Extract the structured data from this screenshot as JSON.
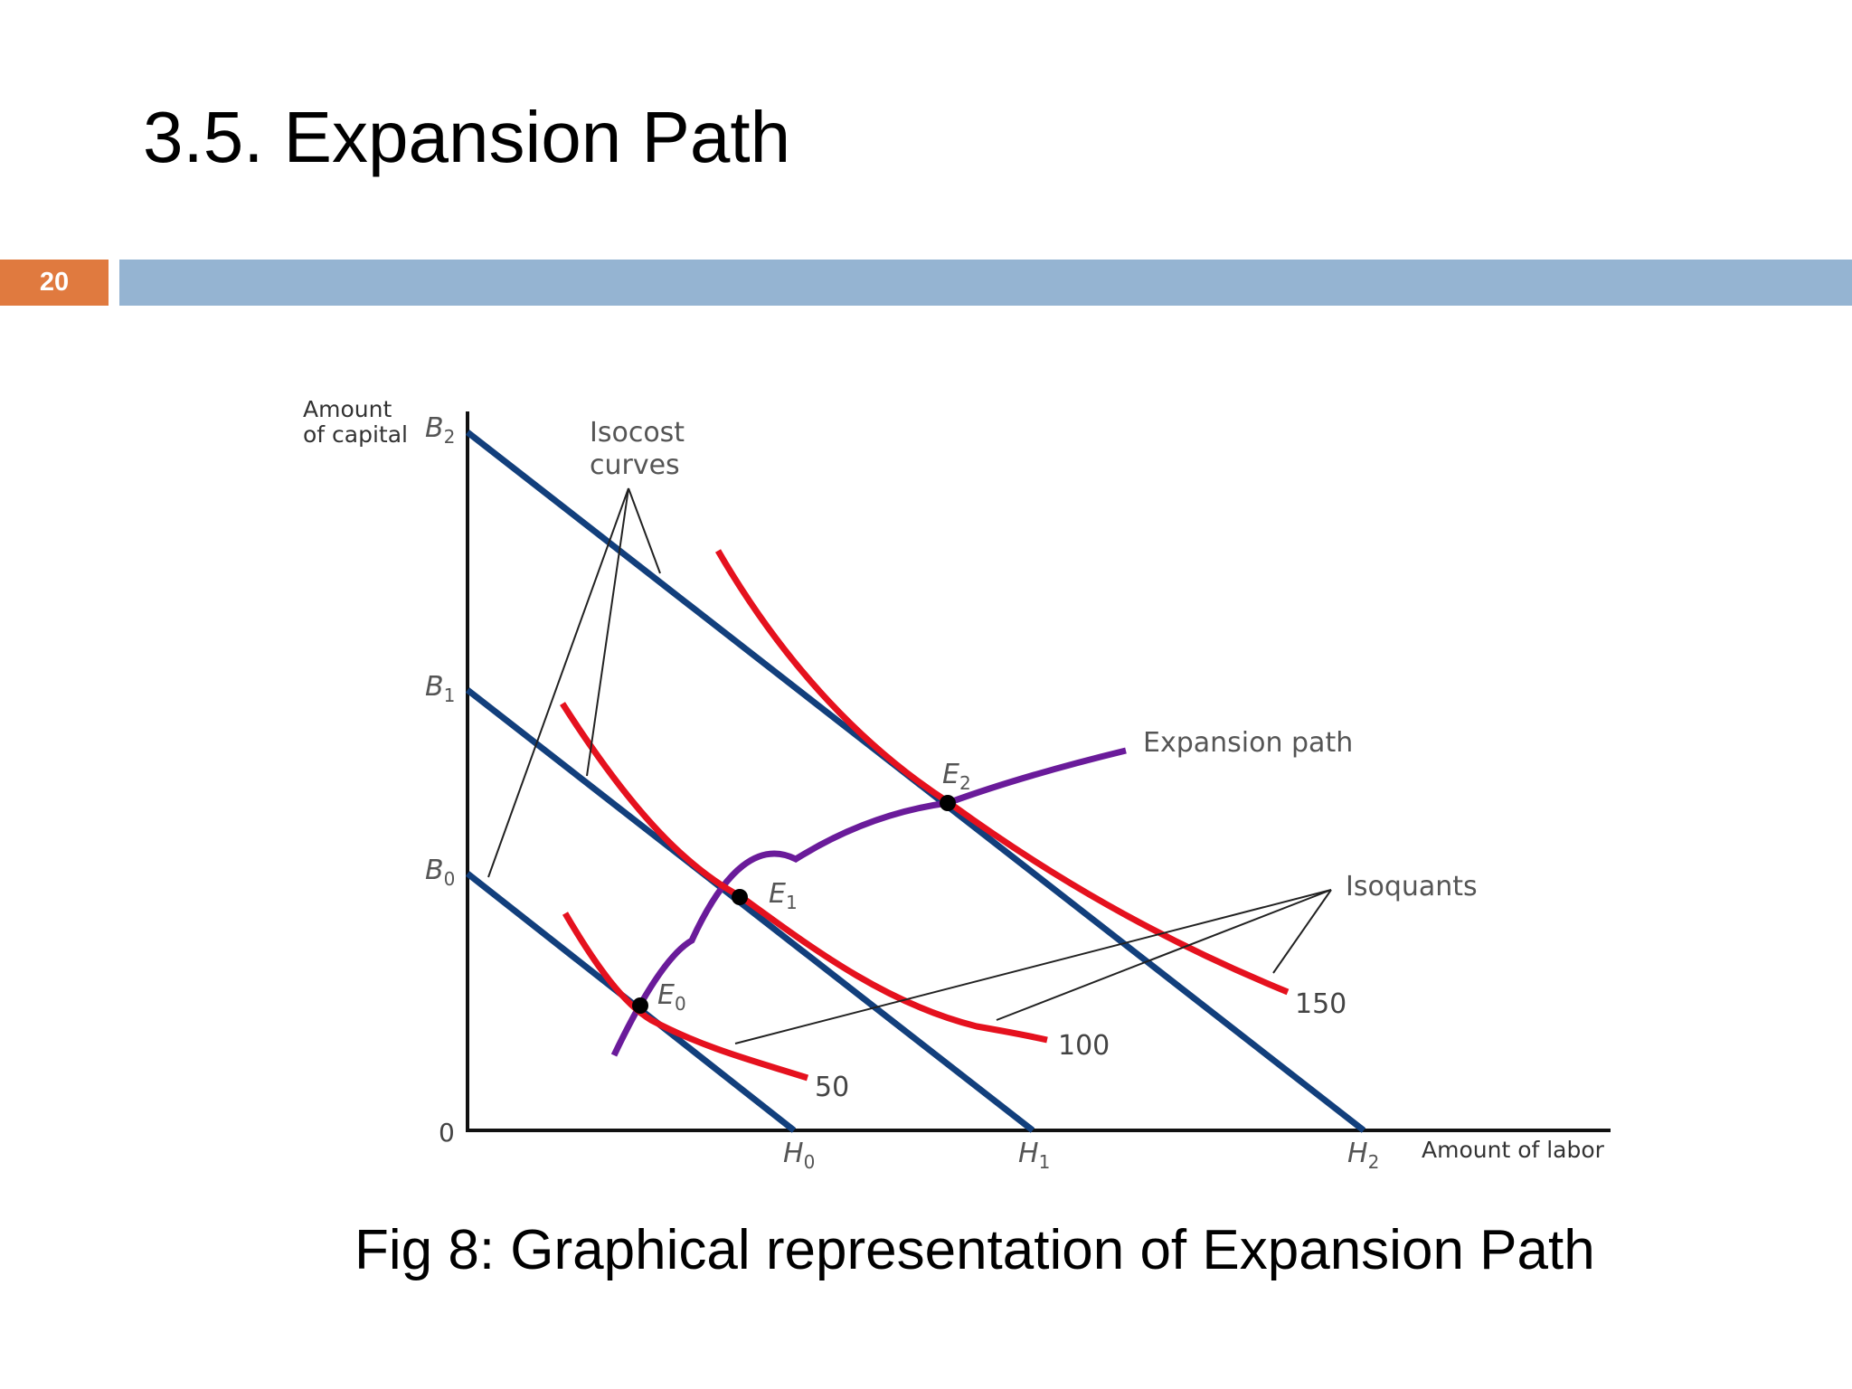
{
  "slide": {
    "title": "3.5. Expansion Path",
    "number": "20",
    "caption": "Fig 8: Graphical representation of Expansion Path"
  },
  "colors": {
    "accent_orange": "#e07a3f",
    "title_bar": "#95b4d2",
    "isocost": "#123f7c",
    "isoquant": "#e5111e",
    "expansion_path": "#6a1b9a"
  },
  "diagram": {
    "y_axis_label_line1": "Amount",
    "y_axis_label_line2": "of capital",
    "x_axis_label": "Amount of labor",
    "origin_label": "0",
    "isocost_label_line1": "Isocost",
    "isocost_label_line2": "curves",
    "isoquants_label": "Isoquants",
    "expansion_path_label": "Expansion path",
    "intercepts": {
      "B": [
        {
          "letter": "B",
          "sub": "0"
        },
        {
          "letter": "B",
          "sub": "1"
        },
        {
          "letter": "B",
          "sub": "2"
        }
      ],
      "H": [
        {
          "letter": "H",
          "sub": "0"
        },
        {
          "letter": "H",
          "sub": "1"
        },
        {
          "letter": "H",
          "sub": "2"
        }
      ]
    },
    "equilibria": [
      {
        "letter": "E",
        "sub": "0"
      },
      {
        "letter": "E",
        "sub": "1"
      },
      {
        "letter": "E",
        "sub": "2"
      }
    ],
    "isoquant_levels": [
      "50",
      "100",
      "150"
    ]
  }
}
